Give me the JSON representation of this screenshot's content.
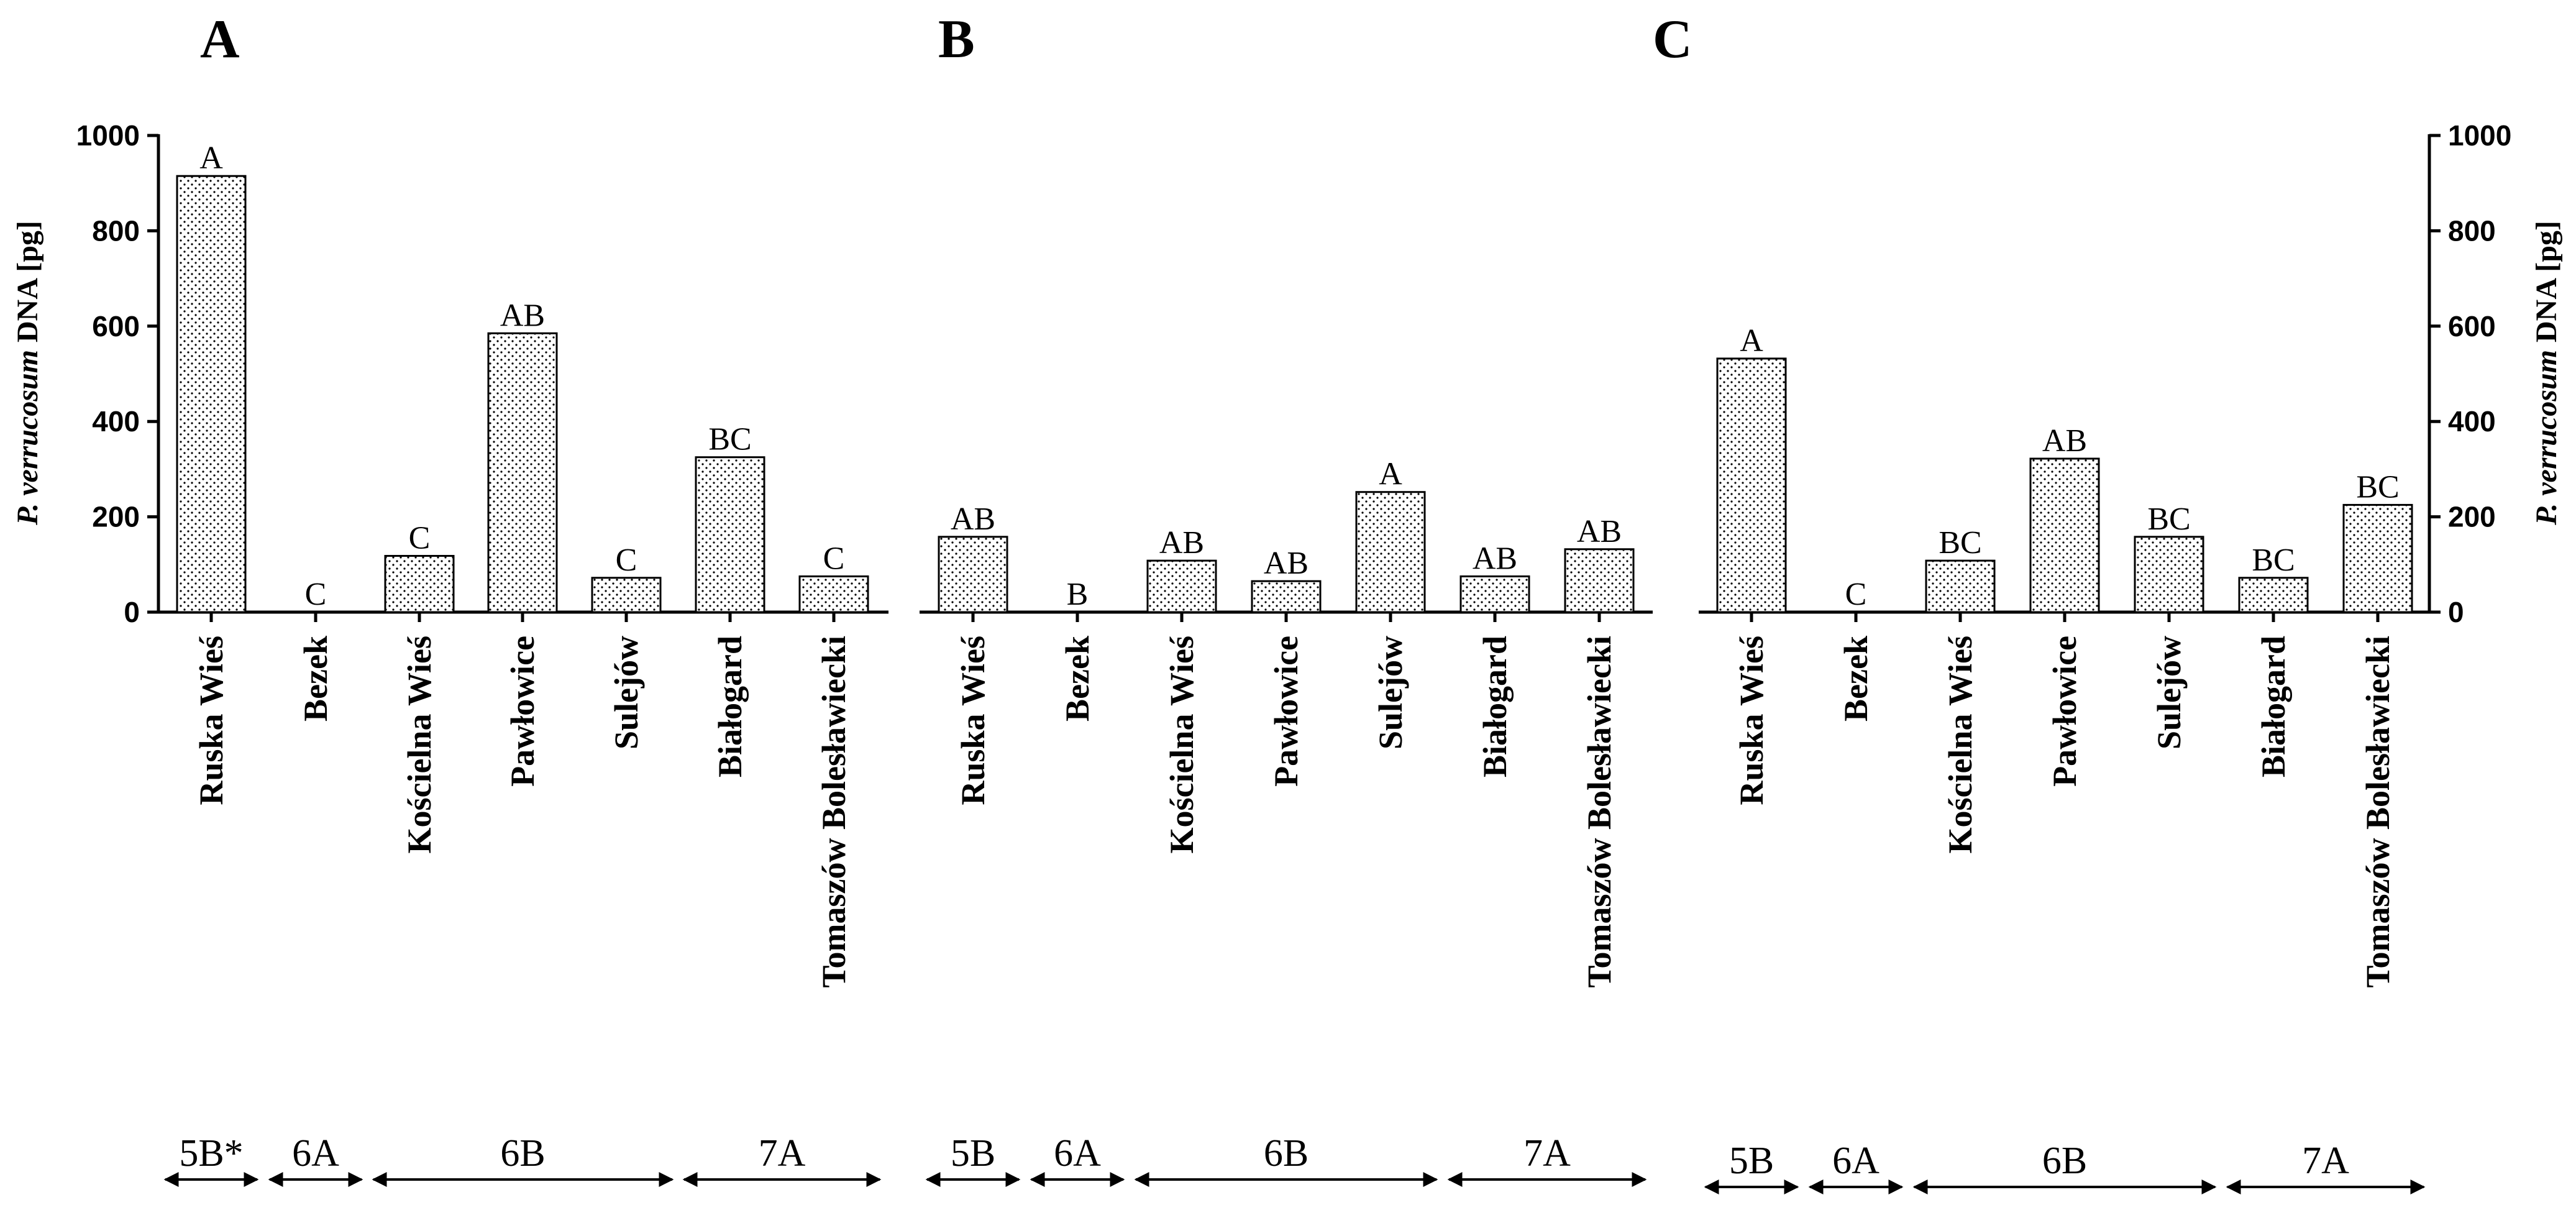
{
  "chart_data": [
    {
      "type": "bar",
      "panel": "A",
      "categories": [
        "Ruska Wieś",
        "Bezek",
        "Kościelna Wieś",
        "Pawłowice",
        "Sulejów",
        "Białogard",
        "Tomaszów Bolesławiecki"
      ],
      "values": [
        915,
        0,
        118,
        585,
        72,
        325,
        75
      ],
      "significance": [
        "A",
        "C",
        "C",
        "AB",
        "C",
        "BC",
        "C"
      ],
      "ylabel_italic": "P. verrucosum",
      "ylabel_rest": " DNA [pg]",
      "ylim": [
        0,
        1000
      ],
      "yticks": [
        "0",
        "200",
        "400",
        "600",
        "800",
        "1000"
      ],
      "groups": [
        {
          "label": "5B*",
          "from": 0,
          "to": 0
        },
        {
          "label": "6A",
          "from": 1,
          "to": 1
        },
        {
          "label": "6B",
          "from": 2,
          "to": 4
        },
        {
          "label": "7A",
          "from": 5,
          "to": 6
        }
      ]
    },
    {
      "type": "bar",
      "panel": "B",
      "categories": [
        "Ruska Wieś",
        "Bezek",
        "Kościelna Wieś",
        "Pawłowice",
        "Sulejów",
        "Białogard",
        "Tomaszów Bolesławiecki"
      ],
      "values": [
        158,
        0,
        108,
        65,
        252,
        75,
        132
      ],
      "significance": [
        "AB",
        "B",
        "AB",
        "AB",
        "A",
        "AB",
        "AB"
      ],
      "ylim": [
        0,
        1000
      ],
      "groups": [
        {
          "label": "5B",
          "from": 0,
          "to": 0
        },
        {
          "label": "6A",
          "from": 1,
          "to": 1
        },
        {
          "label": "6B",
          "from": 2,
          "to": 4
        },
        {
          "label": "7A",
          "from": 5,
          "to": 6
        }
      ]
    },
    {
      "type": "bar",
      "panel": "C",
      "categories": [
        "Ruska Wieś",
        "Bezek",
        "Kościelna Wieś",
        "Pawłowice",
        "Sulejów",
        "Białogard",
        "Tomaszów Bolesławiecki"
      ],
      "values": [
        532,
        0,
        108,
        322,
        158,
        72,
        225
      ],
      "significance": [
        "A",
        "C",
        "BC",
        "AB",
        "BC",
        "BC",
        "BC"
      ],
      "ylabel_italic": "P. verrucosum",
      "ylabel_rest": " DNA [pg]",
      "ylim": [
        0,
        1000
      ],
      "yticks": [
        "0",
        "200",
        "400",
        "600",
        "800",
        "1000"
      ],
      "groups": [
        {
          "label": "5B",
          "from": 0,
          "to": 0
        },
        {
          "label": "6A",
          "from": 1,
          "to": 1
        },
        {
          "label": "6B",
          "from": 2,
          "to": 4
        },
        {
          "label": "7A",
          "from": 5,
          "to": 6
        }
      ]
    }
  ]
}
